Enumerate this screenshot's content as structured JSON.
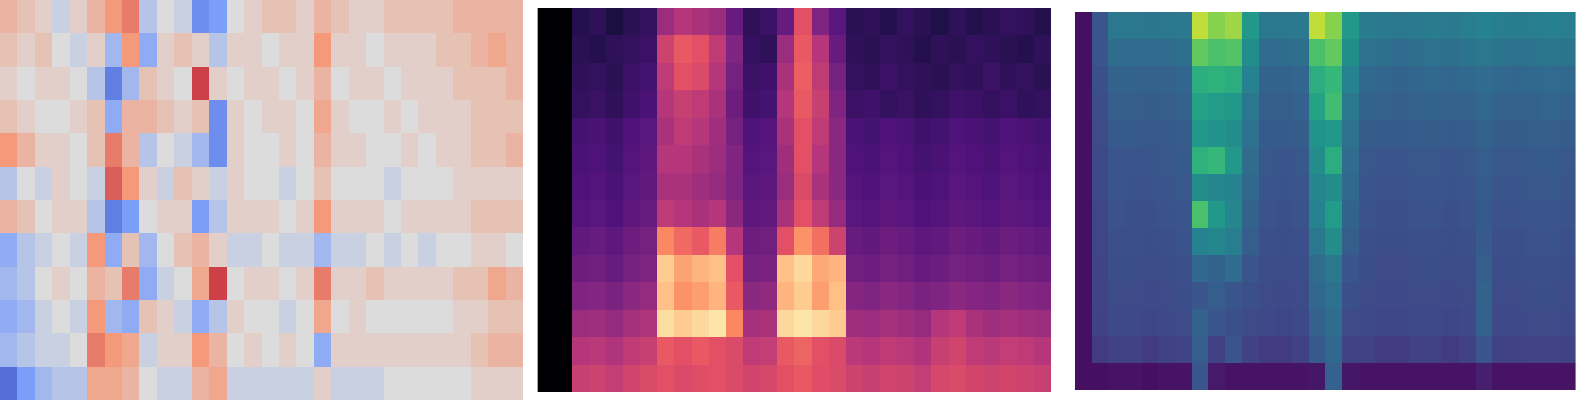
{
  "chart_data": [
    {
      "type": "heatmap",
      "color": "coolwarm",
      "tick_labels": false,
      "zlim": [
        -1,
        1
      ],
      "cells": [
        [
          0.3,
          0.2,
          0.1,
          -0.1,
          0.1,
          0.3,
          0.5,
          0.6,
          -0.2,
          0.0,
          -0.1,
          -0.6,
          -0.5,
          0.0,
          0.1,
          0.2,
          0.2,
          0.1,
          0.3,
          0.2,
          0.1,
          0.1,
          0.2,
          0.2,
          0.2,
          0.2,
          0.3,
          0.3,
          0.3,
          0.3
        ],
        [
          0.2,
          0.1,
          0.2,
          0.0,
          -0.1,
          0.1,
          -0.3,
          0.5,
          -0.4,
          0.1,
          0.2,
          0.1,
          -0.2,
          0.1,
          0.1,
          0.0,
          0.1,
          0.1,
          0.5,
          0.1,
          0.1,
          0.0,
          0.1,
          0.1,
          0.1,
          0.2,
          0.2,
          0.3,
          0.4,
          0.3
        ],
        [
          0.1,
          0.0,
          0.1,
          0.1,
          0.0,
          -0.2,
          -0.7,
          -0.3,
          0.2,
          0.1,
          0.0,
          0.8,
          0.1,
          0.0,
          0.1,
          0.1,
          0.0,
          0.1,
          0.3,
          0.0,
          0.1,
          0.1,
          0.0,
          0.1,
          0.1,
          0.1,
          0.2,
          0.2,
          0.2,
          0.3
        ],
        [
          0.2,
          0.1,
          0.0,
          0.0,
          0.1,
          0.2,
          -0.4,
          0.3,
          0.3,
          0.2,
          0.1,
          0.2,
          -0.6,
          0.1,
          0.0,
          0.1,
          0.1,
          0.0,
          0.4,
          0.1,
          0.0,
          0.0,
          0.1,
          0.0,
          0.1,
          0.1,
          0.1,
          0.2,
          0.2,
          0.2
        ],
        [
          0.5,
          0.3,
          0.1,
          0.1,
          0.0,
          0.2,
          0.6,
          0.3,
          -0.2,
          0.0,
          -0.1,
          -0.3,
          -0.6,
          0.1,
          0.0,
          0.0,
          0.1,
          0.0,
          0.3,
          0.1,
          0.1,
          0.0,
          0.0,
          0.1,
          0.0,
          0.1,
          0.1,
          0.2,
          0.2,
          0.3
        ],
        [
          -0.2,
          0.0,
          -0.1,
          0.1,
          0.0,
          -0.1,
          0.7,
          0.5,
          0.1,
          -0.1,
          0.2,
          0.1,
          -0.1,
          0.1,
          0.0,
          0.0,
          -0.1,
          0.0,
          0.2,
          0.0,
          0.0,
          0.0,
          -0.1,
          0.0,
          0.0,
          0.0,
          0.1,
          0.1,
          0.1,
          0.1
        ],
        [
          0.3,
          0.2,
          0.0,
          0.1,
          0.1,
          -0.2,
          -0.7,
          -0.5,
          0.0,
          0.1,
          0.1,
          -0.5,
          -0.2,
          0.1,
          0.1,
          0.1,
          0.0,
          0.1,
          0.5,
          0.1,
          0.1,
          0.1,
          0.0,
          0.1,
          0.1,
          0.1,
          0.1,
          0.2,
          0.2,
          0.2
        ],
        [
          -0.4,
          -0.2,
          -0.1,
          0.0,
          -0.1,
          0.5,
          -0.4,
          0.2,
          -0.3,
          0.0,
          0.2,
          0.3,
          0.1,
          -0.1,
          -0.1,
          0.0,
          -0.1,
          -0.1,
          -0.3,
          -0.1,
          -0.1,
          0.0,
          -0.1,
          0.0,
          -0.1,
          0.0,
          0.0,
          0.1,
          0.1,
          0.0
        ],
        [
          -0.3,
          -0.2,
          0.0,
          0.1,
          0.0,
          0.3,
          0.2,
          0.6,
          -0.4,
          -0.1,
          0.0,
          0.4,
          0.8,
          0.0,
          0.1,
          0.1,
          0.0,
          0.1,
          0.6,
          0.1,
          0.1,
          0.2,
          0.1,
          0.1,
          0.1,
          0.1,
          0.2,
          0.2,
          0.4,
          0.3
        ],
        [
          -0.4,
          -0.3,
          -0.1,
          0.0,
          -0.1,
          0.5,
          -0.3,
          -0.4,
          0.2,
          0.1,
          -0.1,
          -0.4,
          -0.2,
          0.1,
          0.0,
          0.0,
          -0.1,
          0.0,
          0.4,
          0.0,
          0.1,
          0.0,
          0.0,
          0.0,
          0.0,
          0.0,
          0.1,
          0.1,
          0.2,
          0.2
        ],
        [
          -0.3,
          -0.2,
          -0.1,
          -0.1,
          0.0,
          0.6,
          0.5,
          0.4,
          -0.1,
          0.1,
          0.1,
          0.5,
          0.3,
          0.0,
          0.1,
          0.0,
          0.1,
          0.0,
          -0.4,
          0.1,
          0.1,
          0.1,
          0.1,
          0.1,
          0.1,
          0.1,
          0.1,
          0.2,
          0.3,
          0.3
        ],
        [
          -0.8,
          -0.5,
          -0.3,
          -0.2,
          -0.2,
          0.4,
          0.4,
          0.3,
          0.0,
          -0.1,
          -0.1,
          0.3,
          0.4,
          -0.1,
          -0.1,
          -0.1,
          -0.1,
          -0.1,
          0.1,
          -0.1,
          -0.1,
          -0.1,
          0.0,
          0.0,
          0.0,
          0.0,
          0.0,
          0.1,
          0.1,
          0.1
        ]
      ]
    },
    {
      "type": "heatmap",
      "color": "magma",
      "tick_labels": false,
      "zlim": [
        -80,
        0
      ],
      "cells": [
        [
          -80,
          -80,
          -68,
          -66,
          -70,
          -67,
          -65,
          -45,
          -40,
          -42,
          -45,
          -55,
          -66,
          -64,
          -55,
          -30,
          -50,
          -58,
          -67,
          -66,
          -68,
          -65,
          -67,
          -69,
          -66,
          -68,
          -67,
          -65,
          -66,
          -68
        ],
        [
          -80,
          -80,
          -67,
          -68,
          -66,
          -65,
          -64,
          -35,
          -28,
          -30,
          -38,
          -50,
          -65,
          -66,
          -45,
          -28,
          -40,
          -55,
          -66,
          -67,
          -65,
          -66,
          -68,
          -66,
          -67,
          -65,
          -66,
          -67,
          -68,
          -66
        ],
        [
          -80,
          -80,
          -66,
          -65,
          -67,
          -64,
          -62,
          -38,
          -30,
          -32,
          -40,
          -52,
          -64,
          -63,
          -42,
          -27,
          -38,
          -52,
          -65,
          -66,
          -64,
          -65,
          -66,
          -67,
          -65,
          -66,
          -64,
          -66,
          -65,
          -67
        ],
        [
          -80,
          -80,
          -65,
          -64,
          -66,
          -63,
          -61,
          -40,
          -36,
          -38,
          -42,
          -54,
          -63,
          -62,
          -40,
          -28,
          -36,
          -50,
          -64,
          -63,
          -65,
          -64,
          -66,
          -65,
          -63,
          -64,
          -65,
          -64,
          -66,
          -65
        ],
        [
          -80,
          -80,
          -62,
          -61,
          -63,
          -60,
          -58,
          -42,
          -38,
          -40,
          -44,
          -52,
          -60,
          -59,
          -42,
          -30,
          -38,
          -48,
          -61,
          -62,
          -60,
          -61,
          -63,
          -62,
          -60,
          -61,
          -62,
          -60,
          -61,
          -62
        ],
        [
          -80,
          -80,
          -61,
          -60,
          -62,
          -59,
          -57,
          -40,
          -40,
          -42,
          -45,
          -50,
          -59,
          -58,
          -44,
          -30,
          -40,
          -48,
          -60,
          -61,
          -59,
          -60,
          -62,
          -61,
          -59,
          -60,
          -61,
          -59,
          -60,
          -61
        ],
        [
          -80,
          -80,
          -60,
          -59,
          -61,
          -58,
          -56,
          -42,
          -42,
          -44,
          -46,
          -50,
          -58,
          -57,
          -45,
          -32,
          -42,
          -48,
          -59,
          -60,
          -58,
          -59,
          -61,
          -60,
          -58,
          -59,
          -60,
          -58,
          -59,
          -60
        ],
        [
          -80,
          -80,
          -59,
          -58,
          -60,
          -57,
          -55,
          -38,
          -40,
          -42,
          -40,
          -48,
          -57,
          -56,
          -42,
          -30,
          -38,
          -46,
          -58,
          -59,
          -57,
          -58,
          -60,
          -59,
          -57,
          -58,
          -59,
          -57,
          -58,
          -59
        ],
        [
          -80,
          -80,
          -56,
          -55,
          -57,
          -54,
          -52,
          -20,
          -25,
          -28,
          -22,
          -40,
          -54,
          -53,
          -30,
          -18,
          -24,
          -35,
          -55,
          -56,
          -54,
          -55,
          -57,
          -56,
          -54,
          -55,
          -56,
          -54,
          -55,
          -56
        ],
        [
          -80,
          -80,
          -54,
          -53,
          -55,
          -52,
          -50,
          -8,
          -15,
          -12,
          -10,
          -30,
          -52,
          -51,
          -10,
          -6,
          -14,
          -12,
          -53,
          -54,
          -52,
          -53,
          -55,
          -54,
          -52,
          -53,
          -54,
          -52,
          -53,
          -54
        ],
        [
          -80,
          -80,
          -50,
          -49,
          -51,
          -48,
          -46,
          -10,
          -18,
          -16,
          -12,
          -28,
          -48,
          -47,
          -12,
          -8,
          -16,
          -10,
          -49,
          -50,
          -48,
          -49,
          -51,
          -50,
          -48,
          -49,
          -50,
          -48,
          -49,
          -50
        ],
        [
          -80,
          -80,
          -45,
          -44,
          -46,
          -43,
          -41,
          -5,
          -8,
          -6,
          -4,
          -20,
          -43,
          -42,
          -6,
          -4,
          -6,
          -8,
          -44,
          -45,
          -43,
          -44,
          -46,
          -40,
          -38,
          -42,
          -44,
          -43,
          -44,
          -45
        ],
        [
          -80,
          -80,
          -40,
          -39,
          -41,
          -38,
          -36,
          -28,
          -30,
          -28,
          -30,
          -32,
          -38,
          -37,
          -28,
          -26,
          -30,
          -32,
          -39,
          -40,
          -38,
          -39,
          -41,
          -36,
          -34,
          -38,
          -39,
          -37,
          -38,
          -40
        ],
        [
          -80,
          -80,
          -36,
          -35,
          -37,
          -34,
          -32,
          -30,
          -32,
          -31,
          -30,
          -32,
          -34,
          -33,
          -30,
          -28,
          -31,
          -32,
          -35,
          -36,
          -34,
          -35,
          -37,
          -33,
          -32,
          -34,
          -35,
          -34,
          -35,
          -36
        ]
      ]
    },
    {
      "type": "heatmap",
      "color": "viridis",
      "tick_labels": false,
      "zlim": [
        0,
        1
      ],
      "cells": [
        [
          0.05,
          0.3,
          0.45,
          0.45,
          0.44,
          0.45,
          0.46,
          0.95,
          0.9,
          0.92,
          0.6,
          0.45,
          0.45,
          0.46,
          0.95,
          0.9,
          0.6,
          0.47,
          0.46,
          0.45,
          0.46,
          0.47,
          0.46,
          0.48,
          0.5,
          0.48,
          0.47,
          0.48,
          0.49,
          0.48
        ],
        [
          0.05,
          0.3,
          0.4,
          0.4,
          0.39,
          0.4,
          0.41,
          0.85,
          0.8,
          0.82,
          0.55,
          0.4,
          0.4,
          0.41,
          0.8,
          0.85,
          0.55,
          0.42,
          0.41,
          0.4,
          0.41,
          0.42,
          0.41,
          0.43,
          0.45,
          0.43,
          0.42,
          0.43,
          0.44,
          0.43
        ],
        [
          0.05,
          0.28,
          0.36,
          0.36,
          0.35,
          0.36,
          0.37,
          0.7,
          0.72,
          0.7,
          0.5,
          0.36,
          0.36,
          0.37,
          0.7,
          0.75,
          0.5,
          0.38,
          0.37,
          0.36,
          0.37,
          0.38,
          0.37,
          0.38,
          0.4,
          0.38,
          0.37,
          0.38,
          0.39,
          0.38
        ],
        [
          0.05,
          0.27,
          0.34,
          0.34,
          0.33,
          0.34,
          0.35,
          0.65,
          0.62,
          0.6,
          0.45,
          0.34,
          0.34,
          0.35,
          0.65,
          0.78,
          0.45,
          0.36,
          0.35,
          0.34,
          0.35,
          0.36,
          0.35,
          0.36,
          0.38,
          0.36,
          0.35,
          0.36,
          0.37,
          0.36
        ],
        [
          0.05,
          0.26,
          0.32,
          0.32,
          0.31,
          0.32,
          0.33,
          0.6,
          0.58,
          0.55,
          0.42,
          0.32,
          0.32,
          0.33,
          0.58,
          0.6,
          0.42,
          0.33,
          0.32,
          0.32,
          0.33,
          0.33,
          0.32,
          0.33,
          0.36,
          0.33,
          0.33,
          0.34,
          0.34,
          0.33
        ],
        [
          0.05,
          0.25,
          0.3,
          0.3,
          0.3,
          0.31,
          0.32,
          0.72,
          0.75,
          0.6,
          0.4,
          0.31,
          0.3,
          0.31,
          0.55,
          0.7,
          0.4,
          0.31,
          0.3,
          0.3,
          0.31,
          0.31,
          0.3,
          0.31,
          0.34,
          0.31,
          0.31,
          0.32,
          0.32,
          0.31
        ],
        [
          0.05,
          0.25,
          0.3,
          0.29,
          0.29,
          0.3,
          0.31,
          0.55,
          0.52,
          0.5,
          0.38,
          0.3,
          0.29,
          0.3,
          0.52,
          0.55,
          0.38,
          0.3,
          0.29,
          0.29,
          0.3,
          0.3,
          0.29,
          0.3,
          0.33,
          0.3,
          0.3,
          0.31,
          0.31,
          0.3
        ],
        [
          0.05,
          0.24,
          0.29,
          0.28,
          0.28,
          0.29,
          0.3,
          0.8,
          0.6,
          0.52,
          0.36,
          0.29,
          0.28,
          0.29,
          0.5,
          0.62,
          0.36,
          0.29,
          0.28,
          0.28,
          0.29,
          0.29,
          0.28,
          0.29,
          0.32,
          0.29,
          0.29,
          0.3,
          0.3,
          0.29
        ],
        [
          0.05,
          0.24,
          0.28,
          0.28,
          0.27,
          0.28,
          0.29,
          0.5,
          0.52,
          0.48,
          0.34,
          0.28,
          0.27,
          0.28,
          0.45,
          0.55,
          0.34,
          0.28,
          0.27,
          0.27,
          0.28,
          0.28,
          0.27,
          0.28,
          0.32,
          0.28,
          0.28,
          0.29,
          0.29,
          0.28
        ],
        [
          0.05,
          0.23,
          0.27,
          0.27,
          0.26,
          0.27,
          0.28,
          0.38,
          0.36,
          0.4,
          0.3,
          0.27,
          0.26,
          0.27,
          0.4,
          0.45,
          0.3,
          0.27,
          0.26,
          0.26,
          0.27,
          0.27,
          0.26,
          0.27,
          0.34,
          0.27,
          0.27,
          0.28,
          0.28,
          0.27
        ],
        [
          0.05,
          0.23,
          0.26,
          0.26,
          0.25,
          0.26,
          0.27,
          0.3,
          0.34,
          0.3,
          0.28,
          0.26,
          0.25,
          0.26,
          0.38,
          0.42,
          0.28,
          0.26,
          0.25,
          0.25,
          0.26,
          0.26,
          0.25,
          0.26,
          0.36,
          0.26,
          0.26,
          0.27,
          0.27,
          0.26
        ],
        [
          0.05,
          0.22,
          0.25,
          0.25,
          0.24,
          0.25,
          0.26,
          0.36,
          0.3,
          0.28,
          0.26,
          0.25,
          0.24,
          0.25,
          0.35,
          0.4,
          0.26,
          0.25,
          0.24,
          0.24,
          0.25,
          0.25,
          0.24,
          0.25,
          0.35,
          0.25,
          0.25,
          0.26,
          0.26,
          0.25
        ],
        [
          0.05,
          0.2,
          0.22,
          0.22,
          0.2,
          0.22,
          0.23,
          0.34,
          0.22,
          0.3,
          0.22,
          0.2,
          0.2,
          0.22,
          0.32,
          0.38,
          0.22,
          0.22,
          0.2,
          0.2,
          0.22,
          0.22,
          0.2,
          0.22,
          0.3,
          0.22,
          0.22,
          0.23,
          0.23,
          0.22
        ],
        [
          0.05,
          0.05,
          0.06,
          0.06,
          0.05,
          0.06,
          0.06,
          0.3,
          0.08,
          0.06,
          0.06,
          0.06,
          0.06,
          0.06,
          0.07,
          0.35,
          0.07,
          0.06,
          0.06,
          0.06,
          0.06,
          0.06,
          0.06,
          0.06,
          0.1,
          0.06,
          0.06,
          0.06,
          0.06,
          0.06
        ]
      ]
    }
  ]
}
